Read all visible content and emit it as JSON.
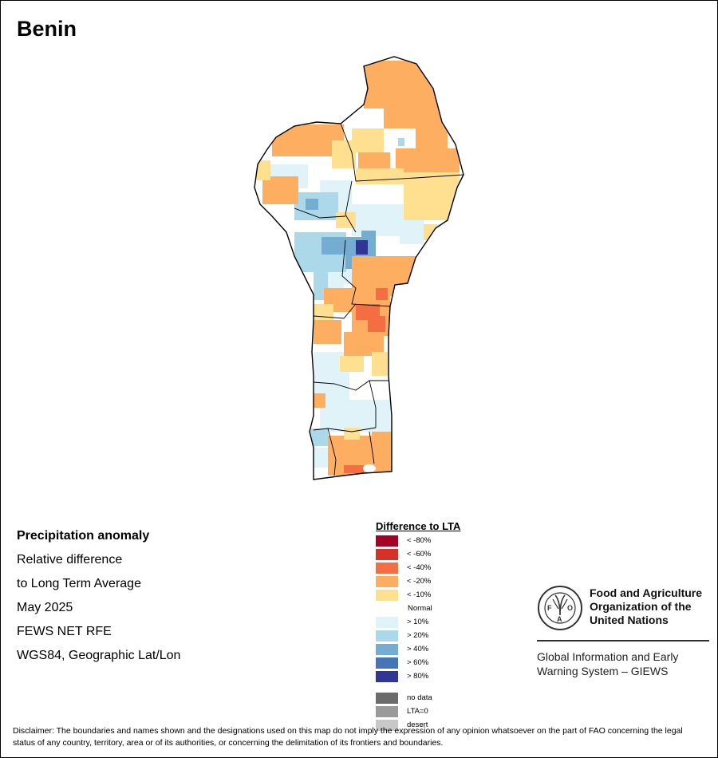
{
  "title": "Benin",
  "info": {
    "heading": "Precipitation anomaly",
    "line1": "Relative difference",
    "line2": "to Long Term Average",
    "period": "May 2025",
    "source": "FEWS NET RFE",
    "projection": "WGS84, Geographic Lat/Lon"
  },
  "legend": {
    "title": "Difference to LTA",
    "classes": [
      {
        "label": "< -80%",
        "color": "#a50026"
      },
      {
        "label": "< -60%",
        "color": "#d73027"
      },
      {
        "label": "< -40%",
        "color": "#f46d43"
      },
      {
        "label": "< -20%",
        "color": "#fdae61"
      },
      {
        "label": "< -10%",
        "color": "#fee090"
      },
      {
        "label": "Normal",
        "color": "#ffffff"
      },
      {
        "label": "> 10%",
        "color": "#e0f3f8"
      },
      {
        "label": "> 20%",
        "color": "#abd9e9"
      },
      {
        "label": "> 40%",
        "color": "#74add1"
      },
      {
        "label": "> 60%",
        "color": "#4575b4"
      },
      {
        "label": "> 80%",
        "color": "#313695"
      }
    ],
    "extra": [
      {
        "label": "no data",
        "color": "#6b6b6b"
      },
      {
        "label": "LTA=0",
        "color": "#9a9a9a"
      },
      {
        "label": "desert",
        "color": "#c8c8c8"
      }
    ]
  },
  "fao": {
    "name1": "Food and Agriculture",
    "name2": "Organization of the",
    "name3": "United Nations",
    "giews1": "Global Information and Early",
    "giews2": "Warning System – GIEWS"
  },
  "disclaimer": "Disclaimer: The boundaries and names shown and the designations used on this map do not imply the expression of any opinion whatsoever on the part of FAO concerning the legal status of any country, territory, area or of its authorities, or concerning the delimitation of its frontiers and boundaries."
}
